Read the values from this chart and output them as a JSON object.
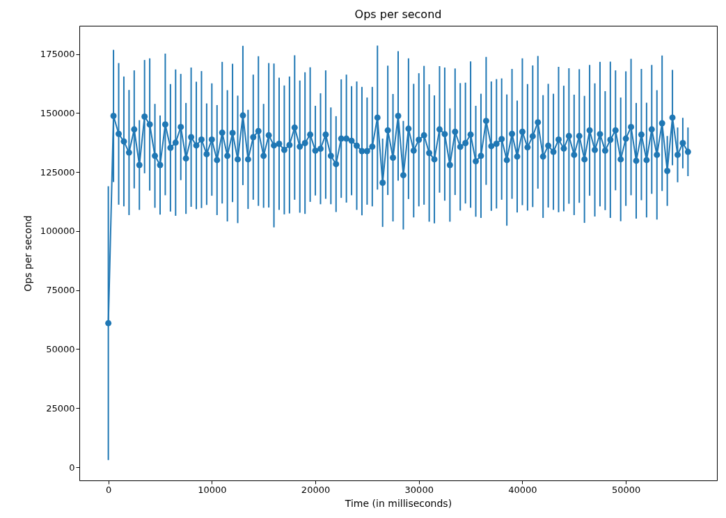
{
  "chart_data": {
    "type": "line",
    "title": "Ops per second",
    "xlabel": "Time (in milliseconds)",
    "ylabel": "Ops per second",
    "color": "#1f77b4",
    "marker": "circle",
    "grid": false,
    "x": [
      0,
      500,
      1000,
      1500,
      2000,
      2500,
      3000,
      3500,
      4000,
      4500,
      5000,
      5500,
      6000,
      6500,
      7000,
      7500,
      8000,
      8500,
      9000,
      9500,
      10000,
      10500,
      11000,
      11500,
      12000,
      12500,
      13000,
      13500,
      14000,
      14500,
      15000,
      15500,
      16000,
      16500,
      17000,
      17500,
      18000,
      18500,
      19000,
      19500,
      20000,
      20500,
      21000,
      21500,
      22000,
      22500,
      23000,
      23500,
      24000,
      24500,
      25000,
      25500,
      26000,
      26500,
      27000,
      27500,
      28000,
      28500,
      29000,
      29500,
      30000,
      30500,
      31000,
      31500,
      32000,
      32500,
      33000,
      33500,
      34000,
      34500,
      35000,
      35500,
      36000,
      36500,
      37000,
      37500,
      38000,
      38500,
      39000,
      39500,
      40000,
      40500,
      41000,
      41500,
      42000,
      42500,
      43000,
      43500,
      44000,
      44500,
      45000,
      45500,
      46000,
      46500,
      47000,
      47500,
      48000,
      48500,
      49000,
      49500,
      50000,
      50500,
      51000,
      51500,
      52000,
      52500,
      53000,
      53500,
      54000,
      54500,
      55000,
      55500,
      56000
    ],
    "values": [
      61000,
      148800,
      141200,
      138000,
      133300,
      143100,
      128000,
      148500,
      145200,
      131900,
      128000,
      145200,
      135300,
      137500,
      144100,
      130800,
      139800,
      136300,
      138800,
      132600,
      138800,
      130100,
      141700,
      131900,
      141600,
      130400,
      149000,
      130400,
      139800,
      142400,
      131900,
      140600,
      136300,
      137000,
      134400,
      136500,
      143900,
      135800,
      137300,
      140900,
      134100,
      134900,
      140900,
      131900,
      128400,
      139200,
      139200,
      138300,
      136200,
      133900,
      133900,
      135800,
      148100,
      120500,
      142700,
      131100,
      148800,
      123700,
      143400,
      134100,
      138700,
      140600,
      133100,
      130400,
      143100,
      141100,
      128000,
      142100,
      135700,
      137300,
      140900,
      129600,
      131900,
      146700,
      136000,
      137000,
      139000,
      130100,
      141200,
      131600,
      142100,
      135500,
      140200,
      146100,
      131600,
      136200,
      133600,
      138800,
      135000,
      140300,
      132300,
      140300,
      130400,
      142700,
      134400,
      141100,
      134100,
      138700,
      142700,
      130400,
      139200,
      144100,
      129800,
      140900,
      130100,
      143100,
      132300,
      145700,
      125500,
      148100,
      132300,
      137300,
      133600
    ],
    "errors": [
      58000,
      28000,
      30000,
      27500,
      26500,
      25000,
      19000,
      24000,
      28000,
      22000,
      21000,
      30000,
      27000,
      31000,
      22500,
      23500,
      29500,
      27000,
      29000,
      21500,
      23800,
      23300,
      30000,
      27800,
      29300,
      27000,
      29500,
      21000,
      26500,
      31700,
      22000,
      30600,
      34700,
      28000,
      27300,
      29000,
      30600,
      28000,
      30000,
      28500,
      19000,
      23500,
      27200,
      20500,
      20300,
      25100,
      27100,
      23100,
      27200,
      27200,
      22700,
      25300,
      30500,
      18700,
      27400,
      27000,
      27400,
      23000,
      29800,
      28300,
      28200,
      29400,
      29100,
      27100,
      26800,
      28200,
      24000,
      26800,
      27000,
      25600,
      31000,
      23500,
      26300,
      27100,
      27400,
      27400,
      25700,
      27800,
      27500,
      23700,
      31100,
      26800,
      30000,
      28100,
      26000,
      26200,
      24600,
      30800,
      26600,
      28700,
      25500,
      28300,
      26900,
      27700,
      28200,
      30600,
      25200,
      33100,
      25400,
      26200,
      28500,
      28900,
      24500,
      27800,
      24300,
      27300,
      27400,
      28700,
      14800,
      20200,
      11600,
      10700,
      10300
    ],
    "xlim": [
      -2800,
      58800
    ],
    "xticks": [
      0,
      10000,
      20000,
      30000,
      40000,
      50000
    ],
    "ylim": [
      -5600,
      187000
    ],
    "yticks": [
      0,
      25000,
      50000,
      75000,
      100000,
      125000,
      150000,
      175000
    ]
  }
}
